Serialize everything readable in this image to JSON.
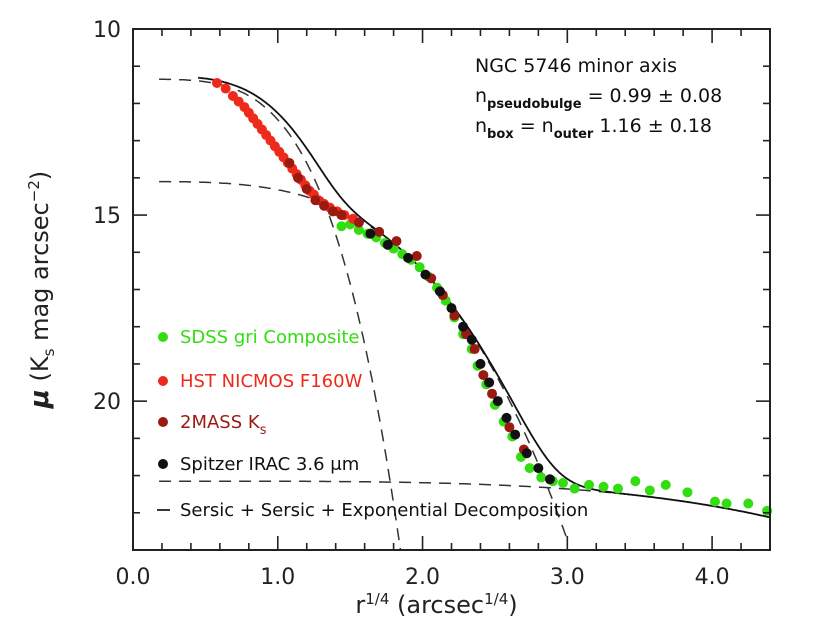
{
  "chart_data": {
    "type": "scatter",
    "xlabel": "r^{1/4}",
    "xlabel_base": "r",
    "xlabel_exp": "1/4",
    "xlabel_unit_prefix": "(arcsec",
    "xlabel_unit_exp": "1/4",
    "xlabel_unit_suffix": ")",
    "ylabel_mu": "μ",
    "ylabel_prefix": "(K",
    "ylabel_sub": "s",
    "ylabel_unit": "mag arcsec",
    "ylabel_unit_exp": "−2",
    "ylabel_suffix": ")",
    "xlim": [
      0.0,
      4.4
    ],
    "ylim": [
      24.0,
      10.0
    ],
    "y_inverted": true,
    "x_ticks": [
      "0.0",
      "1.0",
      "2.0",
      "3.0",
      "4.0"
    ],
    "x_tick_values": [
      0.0,
      1.0,
      2.0,
      3.0,
      4.0
    ],
    "y_ticks": [
      "10",
      "15",
      "20"
    ],
    "y_tick_values": [
      10,
      15,
      20
    ],
    "annotations": {
      "line1": "NGC 5746 minor axis",
      "line2_main": "n",
      "line2_sub": "pseudobulge",
      "line2_val": "= 0.99 ± 0.08",
      "line3_main1": "n",
      "line3_sub1": "box",
      "line3_mid": "= n",
      "line3_sub2": "outer",
      "line3_val": "1.16 ± 0.18"
    },
    "legend_position": "lower-left",
    "series": [
      {
        "name": "SDSS gri Composite",
        "color": "#33dd11",
        "marker": "circle",
        "x": [
          1.44,
          1.5,
          1.56,
          1.62,
          1.68,
          1.74,
          1.8,
          1.86,
          1.92,
          1.98,
          2.04,
          2.1,
          2.16,
          2.22,
          2.28,
          2.34,
          2.38,
          2.44,
          2.5,
          2.56,
          2.62,
          2.68,
          2.74,
          2.82,
          2.9,
          2.97,
          3.05,
          3.15,
          3.25,
          3.35,
          3.47,
          3.57,
          3.68,
          3.83,
          4.02,
          4.1,
          4.25,
          4.38
        ],
        "y": [
          15.3,
          15.25,
          15.4,
          15.5,
          15.6,
          15.75,
          15.9,
          16.05,
          16.2,
          16.4,
          16.65,
          16.95,
          17.3,
          17.75,
          18.2,
          18.6,
          19.05,
          19.55,
          20.1,
          20.55,
          20.95,
          21.5,
          21.8,
          22.05,
          22.15,
          22.2,
          22.35,
          22.25,
          22.3,
          22.35,
          22.15,
          22.4,
          22.25,
          22.45,
          22.7,
          22.75,
          22.75,
          22.95
        ]
      },
      {
        "name": "HST NICMOS F160W",
        "color": "#ee2a1a",
        "marker": "circle",
        "x": [
          0.58,
          0.64,
          0.69,
          0.73,
          0.77,
          0.8,
          0.83,
          0.86,
          0.89,
          0.92,
          0.95,
          0.98,
          1.01,
          1.04,
          1.07,
          1.1,
          1.13,
          1.16,
          1.19,
          1.22,
          1.25,
          1.28,
          1.32,
          1.36,
          1.41,
          1.46,
          1.52
        ],
        "y": [
          11.45,
          11.6,
          11.8,
          11.95,
          12.1,
          12.25,
          12.4,
          12.55,
          12.7,
          12.85,
          13.0,
          13.15,
          13.3,
          13.45,
          13.6,
          13.75,
          13.9,
          14.05,
          14.2,
          14.35,
          14.45,
          14.6,
          14.7,
          14.8,
          14.9,
          15.0,
          15.1
        ]
      },
      {
        "name": "2MASS K_s",
        "color": "#9a1a12",
        "marker": "circle",
        "x": [
          1.08,
          1.14,
          1.2,
          1.26,
          1.32,
          1.38,
          1.44,
          1.56,
          1.7,
          1.82,
          1.96,
          2.06,
          2.14,
          2.22,
          2.3,
          2.36,
          2.42,
          2.48,
          2.6,
          2.7
        ],
        "y": [
          13.6,
          14.0,
          14.3,
          14.6,
          14.75,
          14.9,
          15.0,
          15.2,
          15.45,
          15.7,
          16.1,
          16.7,
          17.15,
          17.7,
          18.2,
          18.6,
          19.3,
          19.8,
          20.7,
          21.3
        ]
      },
      {
        "name": "Spitzer IRAC 3.6 μm",
        "color": "#111111",
        "marker": "circle",
        "x": [
          1.64,
          1.76,
          1.9,
          2.02,
          2.12,
          2.2,
          2.28,
          2.34,
          2.4,
          2.46,
          2.52,
          2.58,
          2.64,
          2.72,
          2.8,
          2.88
        ],
        "y": [
          15.5,
          15.8,
          16.15,
          16.6,
          17.05,
          17.5,
          18.0,
          18.35,
          19.0,
          19.5,
          20.0,
          20.45,
          20.9,
          21.4,
          21.8,
          22.1
        ]
      }
    ],
    "model_legend": "Sersic + Sersic + Exponential Decomposition"
  }
}
